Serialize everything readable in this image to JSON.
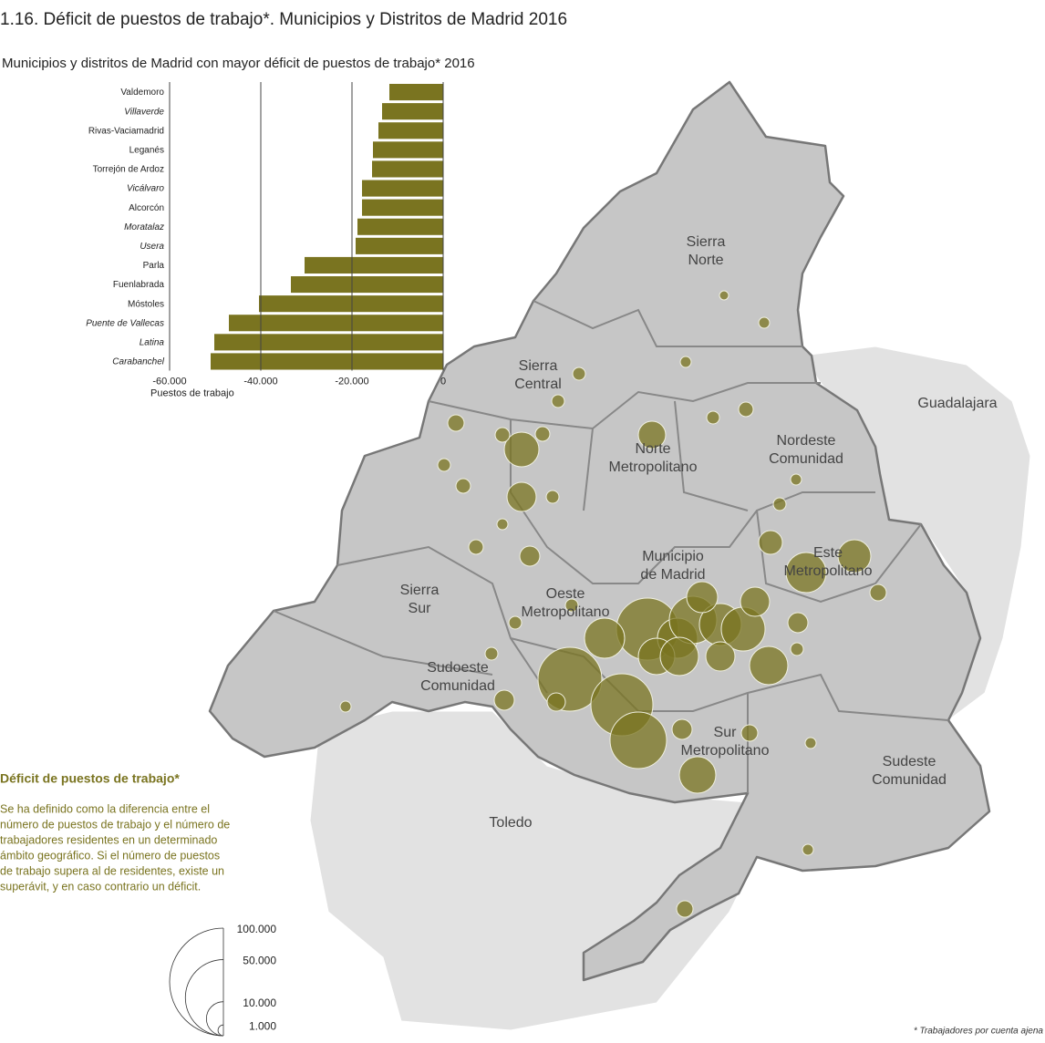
{
  "title": "1.16. Déficit de puestos de trabajo*. Municipios y Distritos de Madrid 2016",
  "chart_data": {
    "type": "hbar",
    "title": "Municipios y distritos de Madrid con mayor déficit de puestos de trabajo* 2016",
    "categories": [
      "Valdemoro",
      "Villaverde",
      "Rivas-Vaciamadrid",
      "Leganés",
      "Torrejón de Ardoz",
      "Vicálvaro",
      "Alcorcón",
      "Moratalaz",
      "Usera",
      "Parla",
      "Fuenlabrada",
      "Móstoles",
      "Puente de Vallecas",
      "Latina",
      "Carabanchel"
    ],
    "italic": [
      false,
      true,
      false,
      false,
      false,
      true,
      false,
      true,
      true,
      false,
      false,
      false,
      true,
      true,
      true
    ],
    "values": [
      -11800,
      -13400,
      -14200,
      -15400,
      -15600,
      -17800,
      -17800,
      -18800,
      -19200,
      -30400,
      -33400,
      -40400,
      -47000,
      -50200,
      -51000
    ],
    "color": "#7a7420",
    "xlim": [
      -60000,
      0
    ],
    "xticks": [
      {
        "value": -60000,
        "label": "-60.000"
      },
      {
        "value": -40000,
        "label": "-40.000"
      },
      {
        "value": -20000,
        "label": "-20.000"
      },
      0
    ],
    "grid": true,
    "xlabel": "Puestos de trabajo"
  },
  "map": {
    "regions": [
      "Sierra\nNorte",
      "Sierra\nCentral",
      "Norte\nMetropolitano",
      "Nordeste\nComunidad",
      "Municipio\nde Madrid",
      "Este\nMetropolitano",
      "Oeste\nMetropolitano",
      "Sierra\nSur",
      "Sudoeste\nComunidad",
      "Sur\nMetropolitano",
      "Sudeste\nComunidad",
      "Guadalajara",
      "Toledo"
    ]
  },
  "legend": {
    "heading": "Déficit de puestos de trabajo*",
    "text": [
      "Se ha definido como la diferencia entre el",
      "número de puestos de trabajo y el número de",
      "trabajadores residentes  en un determinado",
      "ámbito geográfico. Si el número de puestos",
      "de trabajo supera al de residentes, existe un",
      "superávit, y en caso contrario un déficit."
    ],
    "sizes": [
      {
        "value": 100000,
        "label": "100.000"
      },
      {
        "value": 50000,
        "label": "50.000"
      },
      {
        "value": 10000,
        "label": "10.000"
      },
      {
        "value": 1000,
        "label": "1.000"
      }
    ]
  },
  "footnote": "* Trabajadores por cuenta ajena"
}
